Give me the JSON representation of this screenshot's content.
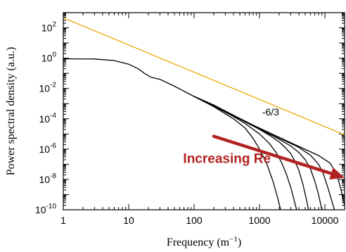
{
  "chart_data": {
    "type": "line",
    "title": "",
    "xlabel": "Frequency (m−1)",
    "ylabel": "Power spectral density (a.u.)",
    "x_scale": "log",
    "y_scale": "log",
    "xlim": [
      1,
      20000
    ],
    "ylim": [
      1e-10,
      1000
    ],
    "grid": false,
    "legend": "none",
    "x_ticks": [
      {
        "value": 1,
        "label": "1"
      },
      {
        "value": 10,
        "label": "10"
      },
      {
        "value": 100,
        "label": "100"
      },
      {
        "value": 1000,
        "label": "1000"
      },
      {
        "value": 10000,
        "label": "10000"
      }
    ],
    "y_ticks": [
      {
        "value": 100,
        "mantissa": "10",
        "exp": "2"
      },
      {
        "value": 1,
        "mantissa": "10",
        "exp": "0"
      },
      {
        "value": 0.01,
        "mantissa": "10",
        "exp": "-2"
      },
      {
        "value": 0.0001,
        "mantissa": "10",
        "exp": "-4"
      },
      {
        "value": 1e-06,
        "mantissa": "10",
        "exp": "-6"
      },
      {
        "value": 1e-08,
        "mantissa": "10",
        "exp": "-8"
      },
      {
        "value": 1e-10,
        "mantissa": "10",
        "exp": "-10"
      }
    ],
    "reference_line": {
      "color": "#F0B323",
      "x": [
        1,
        20000
      ],
      "y": [
        460,
        8.8e-06
      ]
    },
    "series": [
      {
        "color": "#000000",
        "x": [
          1,
          3,
          6,
          10,
          14,
          18,
          22,
          30,
          50,
          100,
          200,
          400,
          600,
          800,
          1000,
          1300,
          1600,
          1900,
          2100
        ],
        "y": [
          0.9,
          0.88,
          0.7,
          0.4,
          0.2,
          0.09,
          0.055,
          0.04,
          0.014,
          0.003,
          0.00063,
          0.0001,
          2.5e-05,
          5e-06,
          1e-06,
          1e-07,
          8e-09,
          6e-10,
          1e-10
        ]
      },
      {
        "color": "#000000",
        "x": [
          100,
          200,
          400,
          600,
          800,
          1000,
          1400,
          1800,
          2200,
          2600,
          3000,
          3400,
          3700
        ],
        "y": [
          0.003,
          0.0007,
          0.00014,
          5e-05,
          2e-05,
          1e-05,
          2.5e-06,
          6e-07,
          1.2e-07,
          2e-08,
          3e-09,
          4e-10,
          1e-10
        ]
      },
      {
        "color": "#000000",
        "x": [
          100,
          200,
          400,
          800,
          1000,
          1500,
          2000,
          2500,
          3000,
          3500,
          4000,
          4600,
          5200,
          5600
        ],
        "y": [
          0.003,
          0.00075,
          0.00016,
          3.3e-05,
          2e-05,
          7e-06,
          3e-06,
          1.2e-06,
          5e-07,
          1.5e-07,
          4e-08,
          5e-09,
          5e-10,
          1e-10
        ]
      },
      {
        "color": "#000000",
        "x": [
          100,
          200,
          400,
          800,
          1000,
          2000,
          3000,
          4000,
          5000,
          6000,
          7000,
          8000,
          9000
        ],
        "y": [
          0.003,
          0.0008,
          0.00017,
          3.6e-05,
          2.2e-05,
          4.5e-06,
          1.6e-06,
          6e-07,
          2e-07,
          5e-08,
          8e-09,
          1e-09,
          1e-10
        ]
      },
      {
        "color": "#000000",
        "x": [
          100,
          200,
          400,
          800,
          1000,
          2000,
          4000,
          6000,
          8000,
          9500,
          11000,
          12500,
          14000
        ],
        "y": [
          0.003,
          0.0008,
          0.00017,
          3.8e-05,
          2.4e-05,
          5.5e-06,
          1.3e-06,
          4e-07,
          1e-07,
          2.3e-08,
          3.2e-09,
          5e-10,
          1e-10
        ]
      },
      {
        "color": "#000000",
        "x": [
          100,
          200,
          400,
          800,
          1000,
          2000,
          4000,
          8000,
          12000,
          14000,
          16000,
          18000,
          20000
        ],
        "y": [
          0.003,
          0.0008,
          0.00017,
          3.8e-05,
          2.4e-05,
          6e-06,
          1.5e-06,
          3.8e-07,
          1.2e-07,
          4e-08,
          1e-08,
          1.5e-09,
          2e-10
        ]
      }
    ],
    "annotations": [
      {
        "text": "-6/3",
        "x": 1100,
        "y": 0.00017,
        "color": "#000000"
      },
      {
        "text": "Increasing Re",
        "x": 68,
        "y": 1.2e-07,
        "color": "#B22222"
      }
    ],
    "arrow": {
      "color": "#B22222",
      "from": [
        200,
        7e-06
      ],
      "to": [
        20000,
        1.3e-08
      ]
    }
  }
}
